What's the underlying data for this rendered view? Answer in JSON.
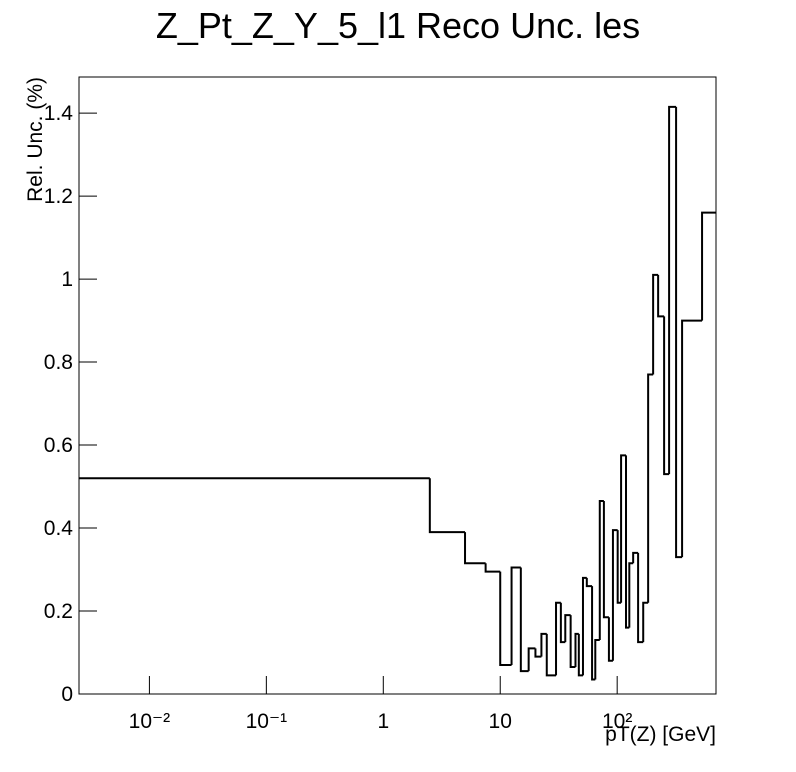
{
  "chart_data": {
    "type": "histogram",
    "title": "Z_Pt_Z_Y_5_l1 Reco Unc. les",
    "xlabel": "pT(Z) [GeV]",
    "ylabel": "Rel. Unc. (%)",
    "xscale": "log",
    "color": "#000000",
    "bins": [
      0.0025,
      2.5,
      5,
      7.5,
      10,
      12.5,
      15,
      17.5,
      20,
      22.5,
      25,
      30,
      33,
      36,
      40,
      44,
      47,
      51,
      55,
      61,
      65,
      71,
      77,
      85,
      92,
      101,
      108,
      119,
      127,
      137,
      151,
      167,
      184,
      203,
      224,
      252,
      278,
      319,
      359,
      532,
      700
    ],
    "values": [
      0.52,
      0.39,
      0.315,
      0.295,
      0.07,
      0.305,
      0.055,
      0.11,
      0.09,
      0.145,
      0.045,
      0.22,
      0.125,
      0.19,
      0.065,
      0.145,
      0.045,
      0.28,
      0.26,
      0.035,
      0.13,
      0.465,
      0.185,
      0.08,
      0.395,
      0.22,
      0.575,
      0.16,
      0.315,
      0.34,
      0.125,
      0.22,
      0.77,
      1.01,
      0.91,
      0.53,
      1.415,
      0.33,
      0.9,
      1.16
    ],
    "xlim": [
      0.0025,
      700
    ],
    "xticks": [
      {
        "value": 0.01,
        "label": "10⁻²"
      },
      {
        "value": 0.1,
        "label": "10⁻¹"
      },
      1,
      10,
      {
        "value": 100,
        "label": "10²"
      }
    ],
    "ylim": [
      0,
      1.487
    ],
    "yticks": [
      0,
      0.2,
      0.4,
      0.6,
      0.8,
      1,
      1.2,
      1.4
    ]
  }
}
